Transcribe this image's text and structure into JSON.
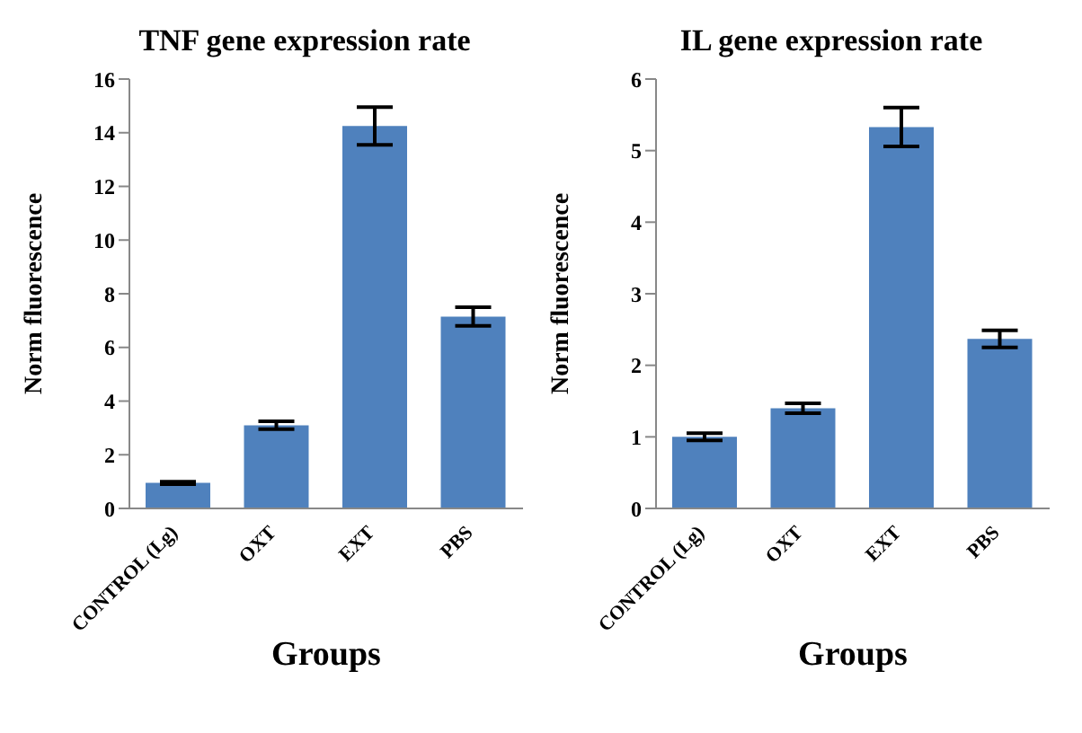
{
  "chart_data": [
    {
      "type": "bar",
      "title": "TNF gene expression rate",
      "xlabel": "Groups",
      "ylabel": "Norm fluorescence",
      "categories": [
        "CONTROL (Lg)",
        "OXT",
        "EXT",
        "PBS"
      ],
      "values": [
        0.95,
        3.1,
        14.25,
        7.15
      ],
      "errors": [
        0.05,
        0.15,
        0.7,
        0.35
      ],
      "color": "#4f81bd",
      "ylim": [
        0,
        16
      ],
      "yticks": [
        0,
        2,
        4,
        6,
        8,
        10,
        12,
        14,
        16
      ],
      "grid": false,
      "legend": false
    },
    {
      "type": "bar",
      "title": "IL gene expression rate",
      "xlabel": "Groups",
      "ylabel": "Norm fluorescence",
      "categories": [
        "CONTROL (Lg)",
        "OXT",
        "EXT",
        "PBS"
      ],
      "values": [
        1.0,
        1.4,
        5.33,
        2.37
      ],
      "errors": [
        0.05,
        0.07,
        0.27,
        0.12
      ],
      "color": "#4f81bd",
      "ylim": [
        0,
        6
      ],
      "yticks": [
        0,
        1,
        2,
        3,
        4,
        5,
        6
      ],
      "grid": false,
      "legend": false
    }
  ]
}
